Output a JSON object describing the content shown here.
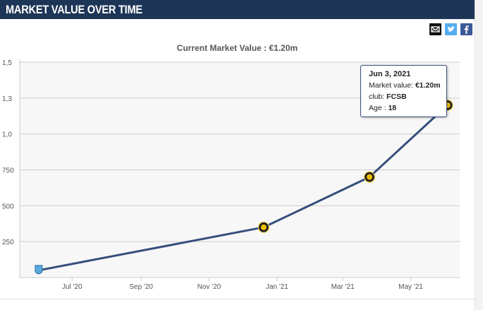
{
  "header": {
    "title": "MARKET VALUE OVER TIME"
  },
  "share": {
    "email_icon": "email-icon",
    "twitter_icon": "twitter-icon",
    "facebook_icon": "facebook-icon"
  },
  "current_value_text": "Current Market Value : €1.20m",
  "tooltip": {
    "date": "Jun 3, 2021",
    "market_label": "Market value:",
    "market_value": "€1.20m",
    "club_label": "club:",
    "club_value": "FCSB",
    "age_label": "Age :",
    "age_value": "18"
  },
  "colors": {
    "header_bg": "#1d3557",
    "line": "#354f7a",
    "grid": "#cccccc",
    "marker_ring": "#222222",
    "marker_fill": "#f0c000"
  },
  "chart_data": {
    "type": "line",
    "title": "",
    "xlabel": "",
    "ylabel": "",
    "x_tick_labels": [
      "Jul '20",
      "Sep '20",
      "Nov '20",
      "Jan '21",
      "Mar '21",
      "May '21"
    ],
    "y_tick_labels": [
      "250",
      "500",
      "750",
      "1,0",
      "1,3",
      "1,5"
    ],
    "ylim": [
      0,
      1500
    ],
    "grid": true,
    "series": [
      {
        "points": [
          {
            "date": "2020-06-01",
            "value": 50,
            "marker": "club-badge-blue"
          },
          {
            "date": "2020-12-20",
            "value": 350,
            "marker": "fcsb-badge"
          },
          {
            "date": "2021-03-25",
            "value": 700,
            "marker": "fcsb-badge"
          },
          {
            "date": "2021-06-03",
            "value": 1200,
            "marker": "fcsb-badge"
          }
        ]
      }
    ]
  }
}
